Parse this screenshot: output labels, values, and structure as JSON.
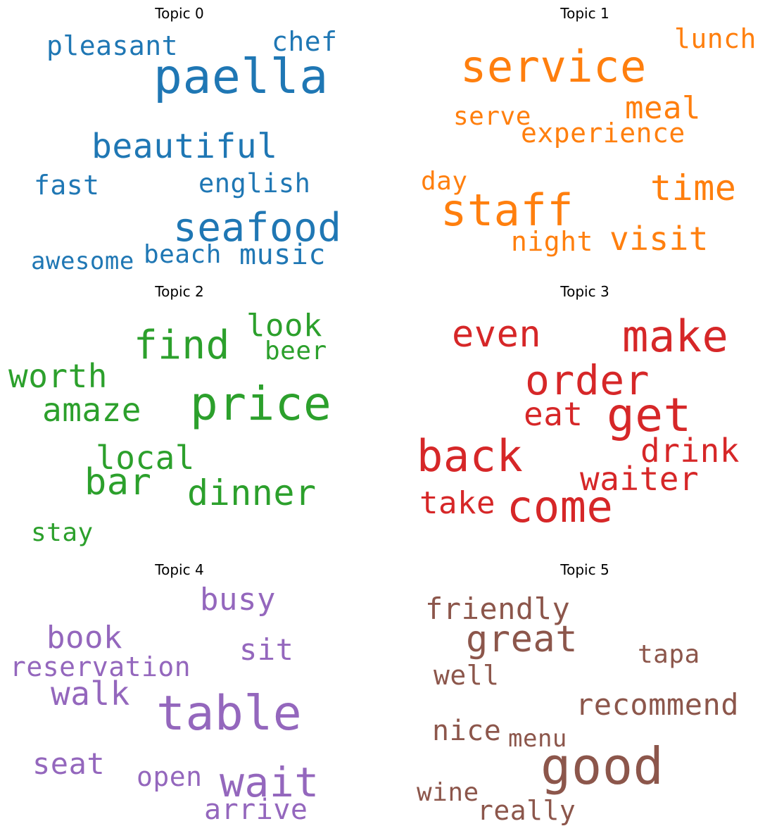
{
  "topics": [
    {
      "title": "Topic 0",
      "color": "#1f77b4",
      "words": [
        "paella",
        "pleasant",
        "chef",
        "beautiful",
        "fast",
        "english",
        "seafood",
        "awesome",
        "beach",
        "music"
      ]
    },
    {
      "title": "Topic 1",
      "color": "#ff7f0e",
      "words": [
        "service",
        "lunch",
        "meal",
        "serve",
        "experience",
        "day",
        "time",
        "staff",
        "visit",
        "night"
      ]
    },
    {
      "title": "Topic 2",
      "color": "#2ca02c",
      "words": [
        "find",
        "look",
        "beer",
        "worth",
        "price",
        "amaze",
        "local",
        "bar",
        "dinner",
        "stay"
      ]
    },
    {
      "title": "Topic 3",
      "color": "#d62728",
      "words": [
        "even",
        "make",
        "order",
        "eat",
        "get",
        "drink",
        "back",
        "waiter",
        "take",
        "come"
      ]
    },
    {
      "title": "Topic 4",
      "color": "#9467bd",
      "words": [
        "busy",
        "book",
        "sit",
        "reservation",
        "walk",
        "table",
        "seat",
        "open",
        "wait",
        "arrive"
      ]
    },
    {
      "title": "Topic 5",
      "color": "#8c564b",
      "words": [
        "friendly",
        "great",
        "tapa",
        "well",
        "recommend",
        "nice",
        "menu",
        "good",
        "wine",
        "really"
      ]
    }
  ]
}
